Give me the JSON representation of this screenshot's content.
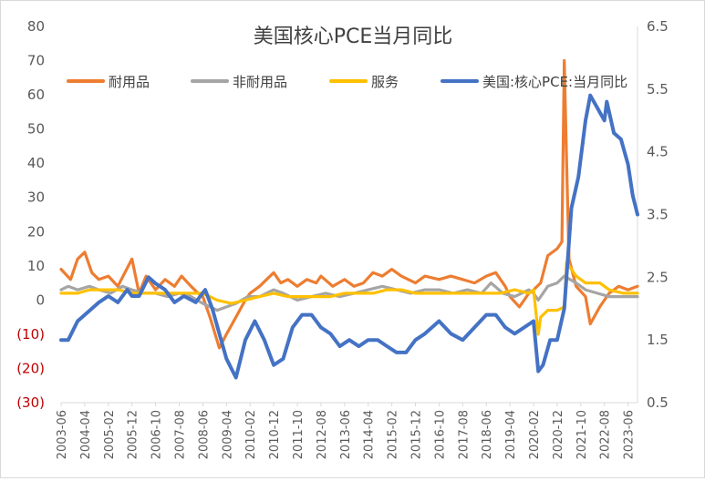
{
  "chart_data": {
    "type": "line",
    "title": "美国核心PCE当月同比",
    "left_axis": {
      "ylim": [
        -30,
        80
      ],
      "ticks": [
        80,
        70,
        60,
        50,
        40,
        30,
        20,
        10,
        0,
        -10,
        -20,
        -30
      ],
      "tick_labels": [
        "80",
        "70",
        "60",
        "50",
        "40",
        "30",
        "20",
        "10",
        "0",
        "(10)",
        "(20)",
        "(30)"
      ]
    },
    "right_axis": {
      "ylim": [
        0.5,
        6.5
      ],
      "ticks": [
        6.5,
        5.5,
        4.5,
        3.5,
        2.5,
        1.5,
        0.5
      ],
      "tick_labels": [
        "6.5",
        "5.5",
        "4.5",
        "3.5",
        "2.5",
        "1.5",
        "0.5"
      ]
    },
    "x_tick_labels": [
      "2003-06",
      "2004-04",
      "2005-02",
      "2005-12",
      "2006-10",
      "2007-08",
      "2008-06",
      "2009-04",
      "2010-02",
      "2010-12",
      "2011-10",
      "2012-08",
      "2013-06",
      "2014-04",
      "2015-02",
      "2015-12",
      "2016-10",
      "2017-08",
      "2018-06",
      "2019-04",
      "2020-02",
      "2020-12",
      "2021-10",
      "2022-08",
      "2023-06"
    ],
    "x_range": [
      "2003-06",
      "2023-10"
    ],
    "legend_position": "top",
    "grid": false,
    "series": [
      {
        "name": "耐用品",
        "axis": "left",
        "color": "#ed7d31",
        "points": [
          [
            "2003-06",
            9
          ],
          [
            "2003-10",
            6
          ],
          [
            "2004-01",
            12
          ],
          [
            "2004-04",
            14
          ],
          [
            "2004-07",
            8
          ],
          [
            "2004-10",
            6
          ],
          [
            "2005-02",
            7
          ],
          [
            "2005-06",
            4
          ],
          [
            "2005-09",
            8
          ],
          [
            "2005-12",
            12
          ],
          [
            "2006-03",
            2
          ],
          [
            "2006-06",
            7
          ],
          [
            "2006-10",
            3
          ],
          [
            "2007-02",
            6
          ],
          [
            "2007-06",
            4
          ],
          [
            "2007-09",
            7
          ],
          [
            "2008-01",
            4
          ],
          [
            "2008-04",
            2
          ],
          [
            "2008-06",
            1
          ],
          [
            "2008-09",
            -5
          ],
          [
            "2009-01",
            -14
          ],
          [
            "2009-04",
            -10
          ],
          [
            "2009-08",
            -5
          ],
          [
            "2009-12",
            0
          ],
          [
            "2010-02",
            2
          ],
          [
            "2010-06",
            4
          ],
          [
            "2010-09",
            6
          ],
          [
            "2010-12",
            8
          ],
          [
            "2011-03",
            5
          ],
          [
            "2011-06",
            6
          ],
          [
            "2011-10",
            4
          ],
          [
            "2012-02",
            6
          ],
          [
            "2012-06",
            5
          ],
          [
            "2012-08",
            7
          ],
          [
            "2013-01",
            4
          ],
          [
            "2013-06",
            6
          ],
          [
            "2013-10",
            4
          ],
          [
            "2014-02",
            5
          ],
          [
            "2014-06",
            8
          ],
          [
            "2014-10",
            7
          ],
          [
            "2015-02",
            9
          ],
          [
            "2015-06",
            7
          ],
          [
            "2015-09",
            6
          ],
          [
            "2015-12",
            5
          ],
          [
            "2016-04",
            7
          ],
          [
            "2016-10",
            6
          ],
          [
            "2017-03",
            7
          ],
          [
            "2017-08",
            6
          ],
          [
            "2018-01",
            5
          ],
          [
            "2018-06",
            7
          ],
          [
            "2018-10",
            8
          ],
          [
            "2019-02",
            4
          ],
          [
            "2019-04",
            1
          ],
          [
            "2019-08",
            -2
          ],
          [
            "2019-12",
            2
          ],
          [
            "2020-02",
            3
          ],
          [
            "2020-05",
            5
          ],
          [
            "2020-08",
            13
          ],
          [
            "2020-12",
            15
          ],
          [
            "2021-02",
            17
          ],
          [
            "2021-03",
            70
          ],
          [
            "2021-04",
            40
          ],
          [
            "2021-05",
            12
          ],
          [
            "2021-08",
            4
          ],
          [
            "2021-12",
            1
          ],
          [
            "2022-02",
            -7
          ],
          [
            "2022-06",
            -2
          ],
          [
            "2022-10",
            2
          ],
          [
            "2023-02",
            4
          ],
          [
            "2023-06",
            3
          ],
          [
            "2023-10",
            4
          ]
        ]
      },
      {
        "name": "非耐用品",
        "axis": "left",
        "color": "#a5a5a5",
        "points": [
          [
            "2003-06",
            3
          ],
          [
            "2003-09",
            4
          ],
          [
            "2004-01",
            3
          ],
          [
            "2004-06",
            4
          ],
          [
            "2004-10",
            3
          ],
          [
            "2005-03",
            2
          ],
          [
            "2005-08",
            4
          ],
          [
            "2005-12",
            3
          ],
          [
            "2006-05",
            2
          ],
          [
            "2006-10",
            2
          ],
          [
            "2007-03",
            1
          ],
          [
            "2007-08",
            2
          ],
          [
            "2008-01",
            1
          ],
          [
            "2008-06",
            -1
          ],
          [
            "2008-12",
            -3
          ],
          [
            "2009-04",
            -2
          ],
          [
            "2009-08",
            -1
          ],
          [
            "2010-01",
            1
          ],
          [
            "2010-06",
            1
          ],
          [
            "2010-12",
            3
          ],
          [
            "2011-04",
            2
          ],
          [
            "2011-10",
            0
          ],
          [
            "2012-04",
            1
          ],
          [
            "2012-10",
            2
          ],
          [
            "2013-04",
            1
          ],
          [
            "2013-10",
            2
          ],
          [
            "2014-04",
            3
          ],
          [
            "2014-10",
            4
          ],
          [
            "2015-04",
            3
          ],
          [
            "2015-10",
            2
          ],
          [
            "2016-04",
            3
          ],
          [
            "2016-10",
            3
          ],
          [
            "2017-04",
            2
          ],
          [
            "2017-10",
            3
          ],
          [
            "2018-04",
            2
          ],
          [
            "2018-08",
            5
          ],
          [
            "2019-01",
            2
          ],
          [
            "2019-06",
            1
          ],
          [
            "2019-12",
            3
          ],
          [
            "2020-02",
            2
          ],
          [
            "2020-04",
            0
          ],
          [
            "2020-08",
            4
          ],
          [
            "2020-12",
            5
          ],
          [
            "2021-03",
            7
          ],
          [
            "2021-08",
            5
          ],
          [
            "2021-12",
            3
          ],
          [
            "2022-05",
            2
          ],
          [
            "2022-10",
            1
          ],
          [
            "2023-04",
            1
          ],
          [
            "2023-10",
            1
          ]
        ]
      },
      {
        "name": "服务",
        "axis": "left",
        "color": "#ffc000",
        "points": [
          [
            "2003-06",
            2
          ],
          [
            "2004-01",
            2
          ],
          [
            "2004-06",
            3
          ],
          [
            "2005-01",
            3
          ],
          [
            "2005-06",
            3
          ],
          [
            "2006-01",
            2
          ],
          [
            "2006-06",
            2
          ],
          [
            "2007-01",
            2
          ],
          [
            "2007-06",
            2
          ],
          [
            "2008-01",
            2
          ],
          [
            "2008-06",
            2
          ],
          [
            "2008-12",
            0
          ],
          [
            "2009-06",
            -1
          ],
          [
            "2009-12",
            0
          ],
          [
            "2010-06",
            1
          ],
          [
            "2010-12",
            2
          ],
          [
            "2011-06",
            1
          ],
          [
            "2011-12",
            1
          ],
          [
            "2012-06",
            1
          ],
          [
            "2012-12",
            1
          ],
          [
            "2013-06",
            2
          ],
          [
            "2013-12",
            2
          ],
          [
            "2014-06",
            2
          ],
          [
            "2014-12",
            3
          ],
          [
            "2015-06",
            3
          ],
          [
            "2015-12",
            2
          ],
          [
            "2016-06",
            2
          ],
          [
            "2016-12",
            2
          ],
          [
            "2017-06",
            2
          ],
          [
            "2017-12",
            2
          ],
          [
            "2018-06",
            2
          ],
          [
            "2018-12",
            2
          ],
          [
            "2019-06",
            3
          ],
          [
            "2019-12",
            2
          ],
          [
            "2020-02",
            3
          ],
          [
            "2020-04",
            -10
          ],
          [
            "2020-05",
            -5
          ],
          [
            "2020-08",
            -3
          ],
          [
            "2020-12",
            -3
          ],
          [
            "2021-03",
            -2
          ],
          [
            "2021-04",
            11
          ],
          [
            "2021-08",
            7
          ],
          [
            "2021-12",
            5
          ],
          [
            "2022-06",
            5
          ],
          [
            "2022-10",
            3
          ],
          [
            "2023-04",
            2
          ],
          [
            "2023-10",
            2
          ]
        ]
      },
      {
        "name": "美国:核心PCE:当月同比",
        "axis": "right",
        "color": "#4472c4",
        "points": [
          [
            "2003-06",
            1.5
          ],
          [
            "2003-09",
            1.5
          ],
          [
            "2004-01",
            1.8
          ],
          [
            "2004-04",
            1.9
          ],
          [
            "2004-07",
            2.0
          ],
          [
            "2004-10",
            2.1
          ],
          [
            "2005-02",
            2.2
          ],
          [
            "2005-06",
            2.1
          ],
          [
            "2005-10",
            2.3
          ],
          [
            "2005-12",
            2.2
          ],
          [
            "2006-03",
            2.2
          ],
          [
            "2006-07",
            2.5
          ],
          [
            "2006-10",
            2.4
          ],
          [
            "2007-02",
            2.3
          ],
          [
            "2007-06",
            2.1
          ],
          [
            "2007-10",
            2.2
          ],
          [
            "2008-03",
            2.1
          ],
          [
            "2008-07",
            2.3
          ],
          [
            "2008-10",
            2.0
          ],
          [
            "2009-01",
            1.6
          ],
          [
            "2009-04",
            1.2
          ],
          [
            "2009-08",
            0.9
          ],
          [
            "2009-12",
            1.5
          ],
          [
            "2010-04",
            1.8
          ],
          [
            "2010-08",
            1.5
          ],
          [
            "2010-12",
            1.1
          ],
          [
            "2011-04",
            1.2
          ],
          [
            "2011-08",
            1.7
          ],
          [
            "2011-12",
            1.9
          ],
          [
            "2012-04",
            1.9
          ],
          [
            "2012-08",
            1.7
          ],
          [
            "2012-12",
            1.6
          ],
          [
            "2013-04",
            1.4
          ],
          [
            "2013-08",
            1.5
          ],
          [
            "2013-12",
            1.4
          ],
          [
            "2014-04",
            1.5
          ],
          [
            "2014-08",
            1.5
          ],
          [
            "2014-12",
            1.4
          ],
          [
            "2015-04",
            1.3
          ],
          [
            "2015-08",
            1.3
          ],
          [
            "2015-12",
            1.5
          ],
          [
            "2016-04",
            1.6
          ],
          [
            "2016-10",
            1.8
          ],
          [
            "2017-03",
            1.6
          ],
          [
            "2017-08",
            1.5
          ],
          [
            "2018-01",
            1.7
          ],
          [
            "2018-06",
            1.9
          ],
          [
            "2018-10",
            1.9
          ],
          [
            "2019-02",
            1.7
          ],
          [
            "2019-06",
            1.6
          ],
          [
            "2019-10",
            1.7
          ],
          [
            "2020-02",
            1.8
          ],
          [
            "2020-04",
            1.0
          ],
          [
            "2020-06",
            1.1
          ],
          [
            "2020-09",
            1.5
          ],
          [
            "2020-12",
            1.5
          ],
          [
            "2021-03",
            2.0
          ],
          [
            "2021-06",
            3.6
          ],
          [
            "2021-09",
            4.1
          ],
          [
            "2021-12",
            5.0
          ],
          [
            "2022-02",
            5.4
          ],
          [
            "2022-05",
            5.2
          ],
          [
            "2022-08",
            5.0
          ],
          [
            "2022-09",
            5.3
          ],
          [
            "2022-12",
            4.8
          ],
          [
            "2023-03",
            4.7
          ],
          [
            "2023-06",
            4.3
          ],
          [
            "2023-08",
            3.8
          ],
          [
            "2023-10",
            3.5
          ]
        ]
      }
    ]
  }
}
